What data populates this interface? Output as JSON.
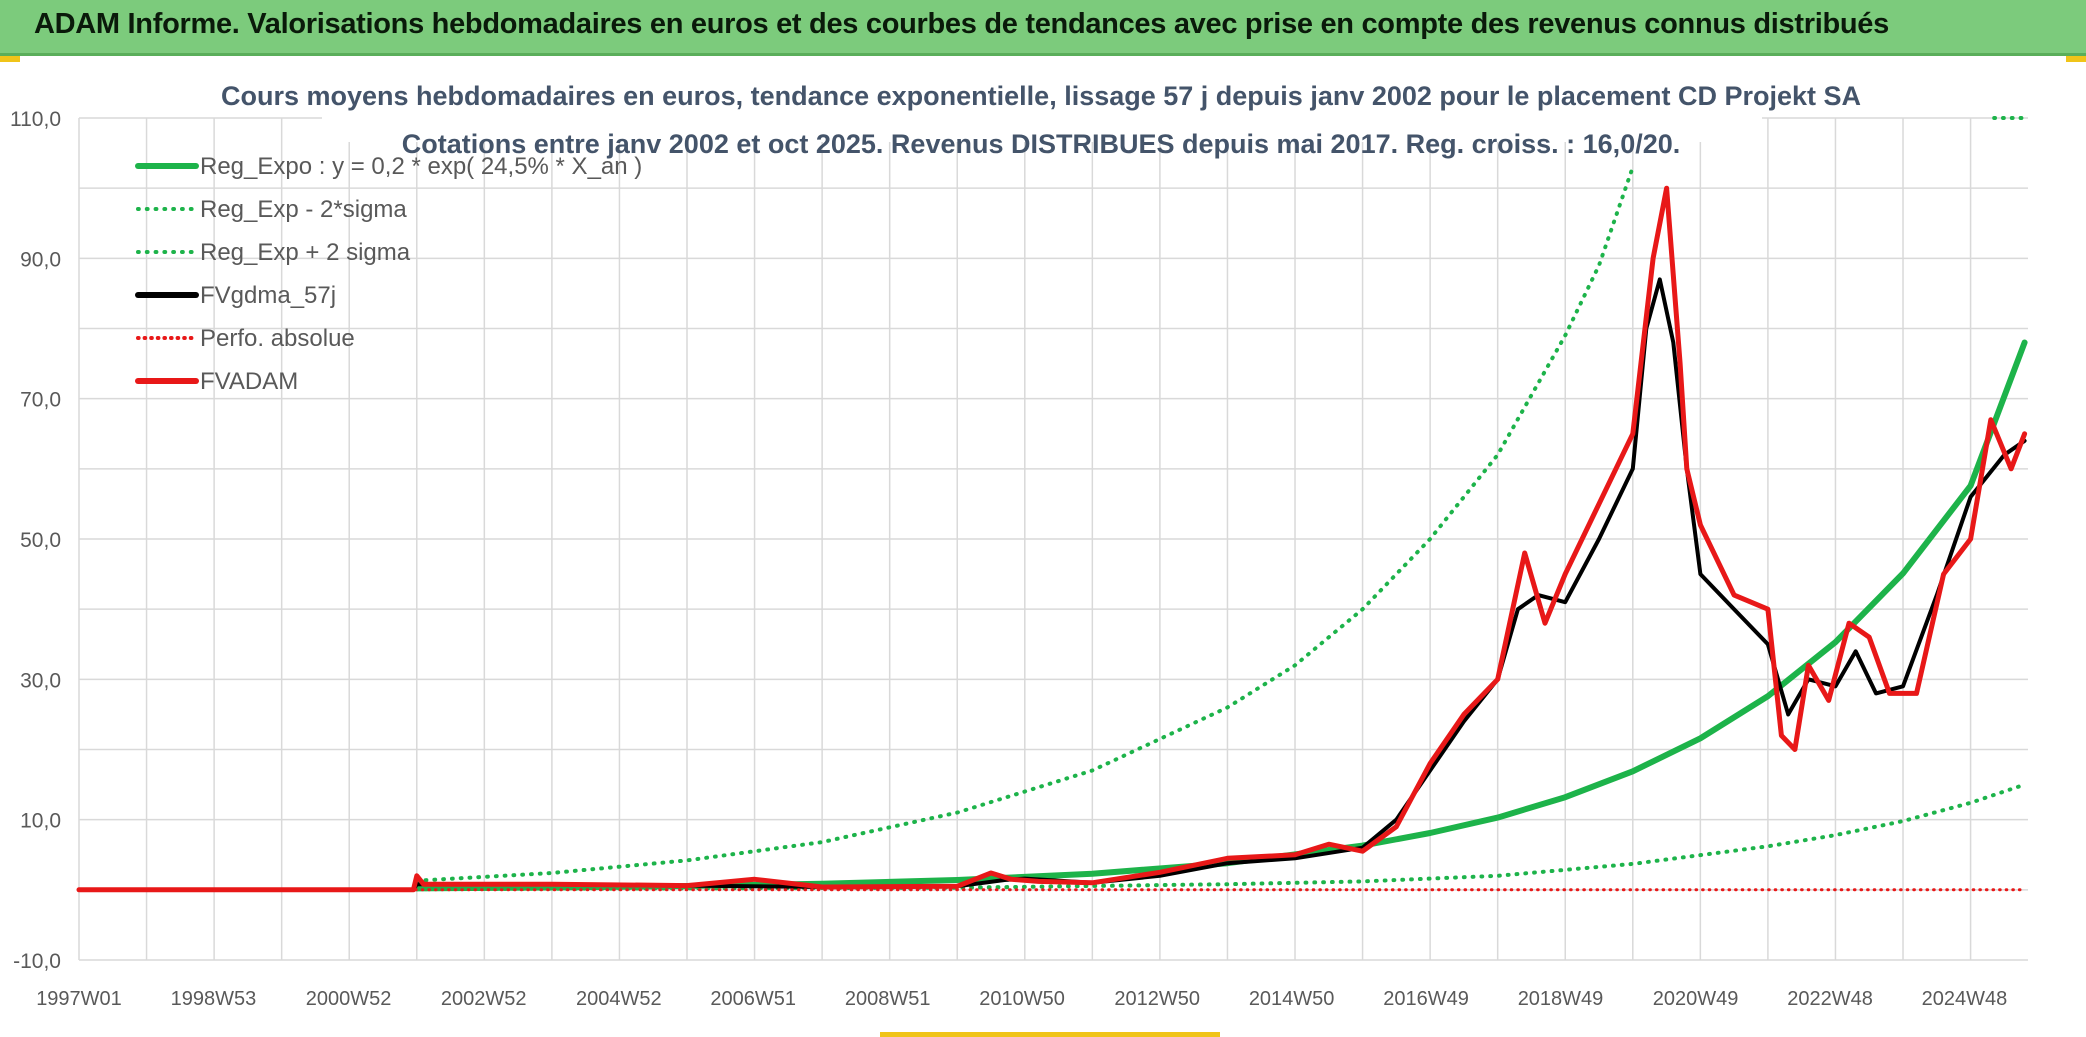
{
  "header": {
    "title": "ADAM Informe. Valorisations hebdomadaires en euros et des courbes de tendances avec prise en compte des revenus connus distribués"
  },
  "chart_data": {
    "type": "line",
    "title": "Cours moyens hebdomadaires en euros, tendance exponentielle, lissage 57 j depuis janv 2002 pour le placement CD Projekt SA",
    "subtitle": "Cotations entre janv 2002 et oct 2025. Revenus DISTRIBUES depuis mai 2017. Reg. croiss. : 16,0/20.",
    "xlabel": "",
    "ylabel": "",
    "ylim": [
      -10,
      110
    ],
    "xlim": [
      1997.0,
      2025.85
    ],
    "grid": true,
    "legend_position": "top-left",
    "x_ticks": [
      {
        "label": "1997W01",
        "x": 1997.0
      },
      {
        "label": "1998W53",
        "x": 1998.99
      },
      {
        "label": "2000W52",
        "x": 2000.99
      },
      {
        "label": "2002W52",
        "x": 2002.99
      },
      {
        "label": "2004W52",
        "x": 2004.99
      },
      {
        "label": "2006W51",
        "x": 2006.98
      },
      {
        "label": "2008W51",
        "x": 2008.97
      },
      {
        "label": "2010W50",
        "x": 2010.96
      },
      {
        "label": "2012W50",
        "x": 2012.96
      },
      {
        "label": "2014W50",
        "x": 2014.95
      },
      {
        "label": "2016W49",
        "x": 2016.94
      },
      {
        "label": "2018W49",
        "x": 2018.93
      },
      {
        "label": "2020W49",
        "x": 2020.93
      },
      {
        "label": "2022W48",
        "x": 2022.92
      },
      {
        "label": "2024W48",
        "x": 2024.91
      }
    ],
    "y_ticks": [
      {
        "label": "110,0",
        "value": 110
      },
      {
        "label": "90,0",
        "value": 90
      },
      {
        "label": "70,0",
        "value": 70
      },
      {
        "label": "50,0",
        "value": 50
      },
      {
        "label": "30,0",
        "value": 30
      },
      {
        "label": "10,0",
        "value": 10
      },
      {
        "label": "-10,0",
        "value": -10
      }
    ],
    "series": [
      {
        "name": "Reg_Expo : y = 0,2 * exp( 24,5% *  X_an )",
        "color": "#1db34a",
        "style": "solid",
        "width": 6,
        "x": [
          2002.0,
          2004.0,
          2006.0,
          2008.0,
          2010.0,
          2012.0,
          2014.0,
          2016.0,
          2017.0,
          2018.0,
          2019.0,
          2020.0,
          2021.0,
          2022.0,
          2023.0,
          2024.0,
          2025.0,
          2025.8
        ],
        "y": [
          0.2,
          0.33,
          0.54,
          0.88,
          1.4,
          2.3,
          3.8,
          6.3,
          8.1,
          10.3,
          13.2,
          16.9,
          21.6,
          27.6,
          35.3,
          45.1,
          57.6,
          78.0
        ]
      },
      {
        "name": "Reg_Exp - 2*sigma",
        "color": "#1db34a",
        "style": "dotted",
        "width": 4,
        "x": [
          2002.0,
          2006.0,
          2010.0,
          2014.0,
          2016.0,
          2018.0,
          2020.0,
          2022.0,
          2023.0,
          2024.0,
          2025.0,
          2025.8
        ],
        "y": [
          0.1,
          0.2,
          0.3,
          0.8,
          1.2,
          2.0,
          3.7,
          6.2,
          7.8,
          9.8,
          12.4,
          15.0
        ]
      },
      {
        "name": "Reg_Exp + 2 sigma",
        "color": "#1db34a",
        "style": "dotted",
        "width": 4,
        "x": [
          2002.0,
          2004.0,
          2006.0,
          2008.0,
          2010.0,
          2012.0,
          2014.0,
          2015.0,
          2016.0,
          2017.0,
          2018.0,
          2019.0,
          2019.5,
          2020.0
        ],
        "y": [
          1.3,
          2.4,
          4.2,
          6.8,
          11.0,
          17.0,
          26.0,
          32.0,
          40.0,
          50.0,
          62.0,
          79.0,
          89.0,
          103.0
        ],
        "x_capped": [
          2025.35,
          2025.8
        ],
        "y_capped": [
          110.0,
          110.0
        ]
      },
      {
        "name": "FVgdma_57j",
        "color": "#000000",
        "style": "solid",
        "width": 4,
        "x": [
          1997.0,
          2001.95,
          2002.0,
          2004.0,
          2006.0,
          2008.0,
          2010.0,
          2010.7,
          2011.0,
          2012.0,
          2013.0,
          2014.0,
          2015.0,
          2016.0,
          2016.5,
          2017.0,
          2017.5,
          2018.0,
          2018.3,
          2018.6,
          2019.0,
          2019.5,
          2020.0,
          2020.2,
          2020.4,
          2020.6,
          2020.8,
          2021.0,
          2021.5,
          2022.0,
          2022.3,
          2022.6,
          2023.0,
          2023.3,
          2023.6,
          2024.0,
          2024.5,
          2025.0,
          2025.5,
          2025.8
        ],
        "y": [
          0.0,
          0.0,
          0.8,
          0.8,
          0.6,
          0.4,
          0.5,
          1.4,
          1.6,
          1.0,
          2.0,
          3.8,
          4.5,
          6.0,
          10.0,
          17.0,
          24.0,
          30.0,
          40.0,
          42.0,
          41.0,
          50.0,
          60.0,
          80.0,
          87.0,
          78.0,
          60.0,
          45.0,
          40.0,
          35.0,
          25.0,
          30.0,
          29.0,
          34.0,
          28.0,
          29.0,
          42.0,
          56.0,
          62.0,
          64.0
        ]
      },
      {
        "name": "Perfo. absolue",
        "color": "#e81818",
        "style": "dotted",
        "width": 3,
        "x": [
          1997.0,
          2025.8
        ],
        "y": [
          0.0,
          0.0
        ]
      },
      {
        "name": "FVADAM",
        "color": "#e81818",
        "style": "solid",
        "width": 5,
        "x": [
          1997.0,
          2001.95,
          2002.0,
          2002.1,
          2004.0,
          2006.0,
          2007.0,
          2008.0,
          2010.0,
          2010.5,
          2010.8,
          2011.2,
          2012.0,
          2013.0,
          2014.0,
          2015.0,
          2015.5,
          2016.0,
          2016.5,
          2017.0,
          2017.5,
          2018.0,
          2018.4,
          2018.7,
          2019.0,
          2019.5,
          2020.0,
          2020.3,
          2020.5,
          2020.7,
          2020.8,
          2021.0,
          2021.5,
          2022.0,
          2022.2,
          2022.4,
          2022.6,
          2022.9,
          2023.2,
          2023.5,
          2023.8,
          2024.2,
          2024.6,
          2025.0,
          2025.3,
          2025.6,
          2025.8
        ],
        "y": [
          0.0,
          0.0,
          2.0,
          0.8,
          0.8,
          0.6,
          1.5,
          0.4,
          0.5,
          2.4,
          1.5,
          1.2,
          1.0,
          2.5,
          4.5,
          5.0,
          6.5,
          5.5,
          9.0,
          18.0,
          25.0,
          30.0,
          48.0,
          38.0,
          45.0,
          55.0,
          65.0,
          90.0,
          100.0,
          75.0,
          60.0,
          52.0,
          42.0,
          40.0,
          22.0,
          20.0,
          32.0,
          27.0,
          38.0,
          36.0,
          28.0,
          28.0,
          45.0,
          50.0,
          67.0,
          60.0,
          65.0
        ]
      }
    ]
  }
}
